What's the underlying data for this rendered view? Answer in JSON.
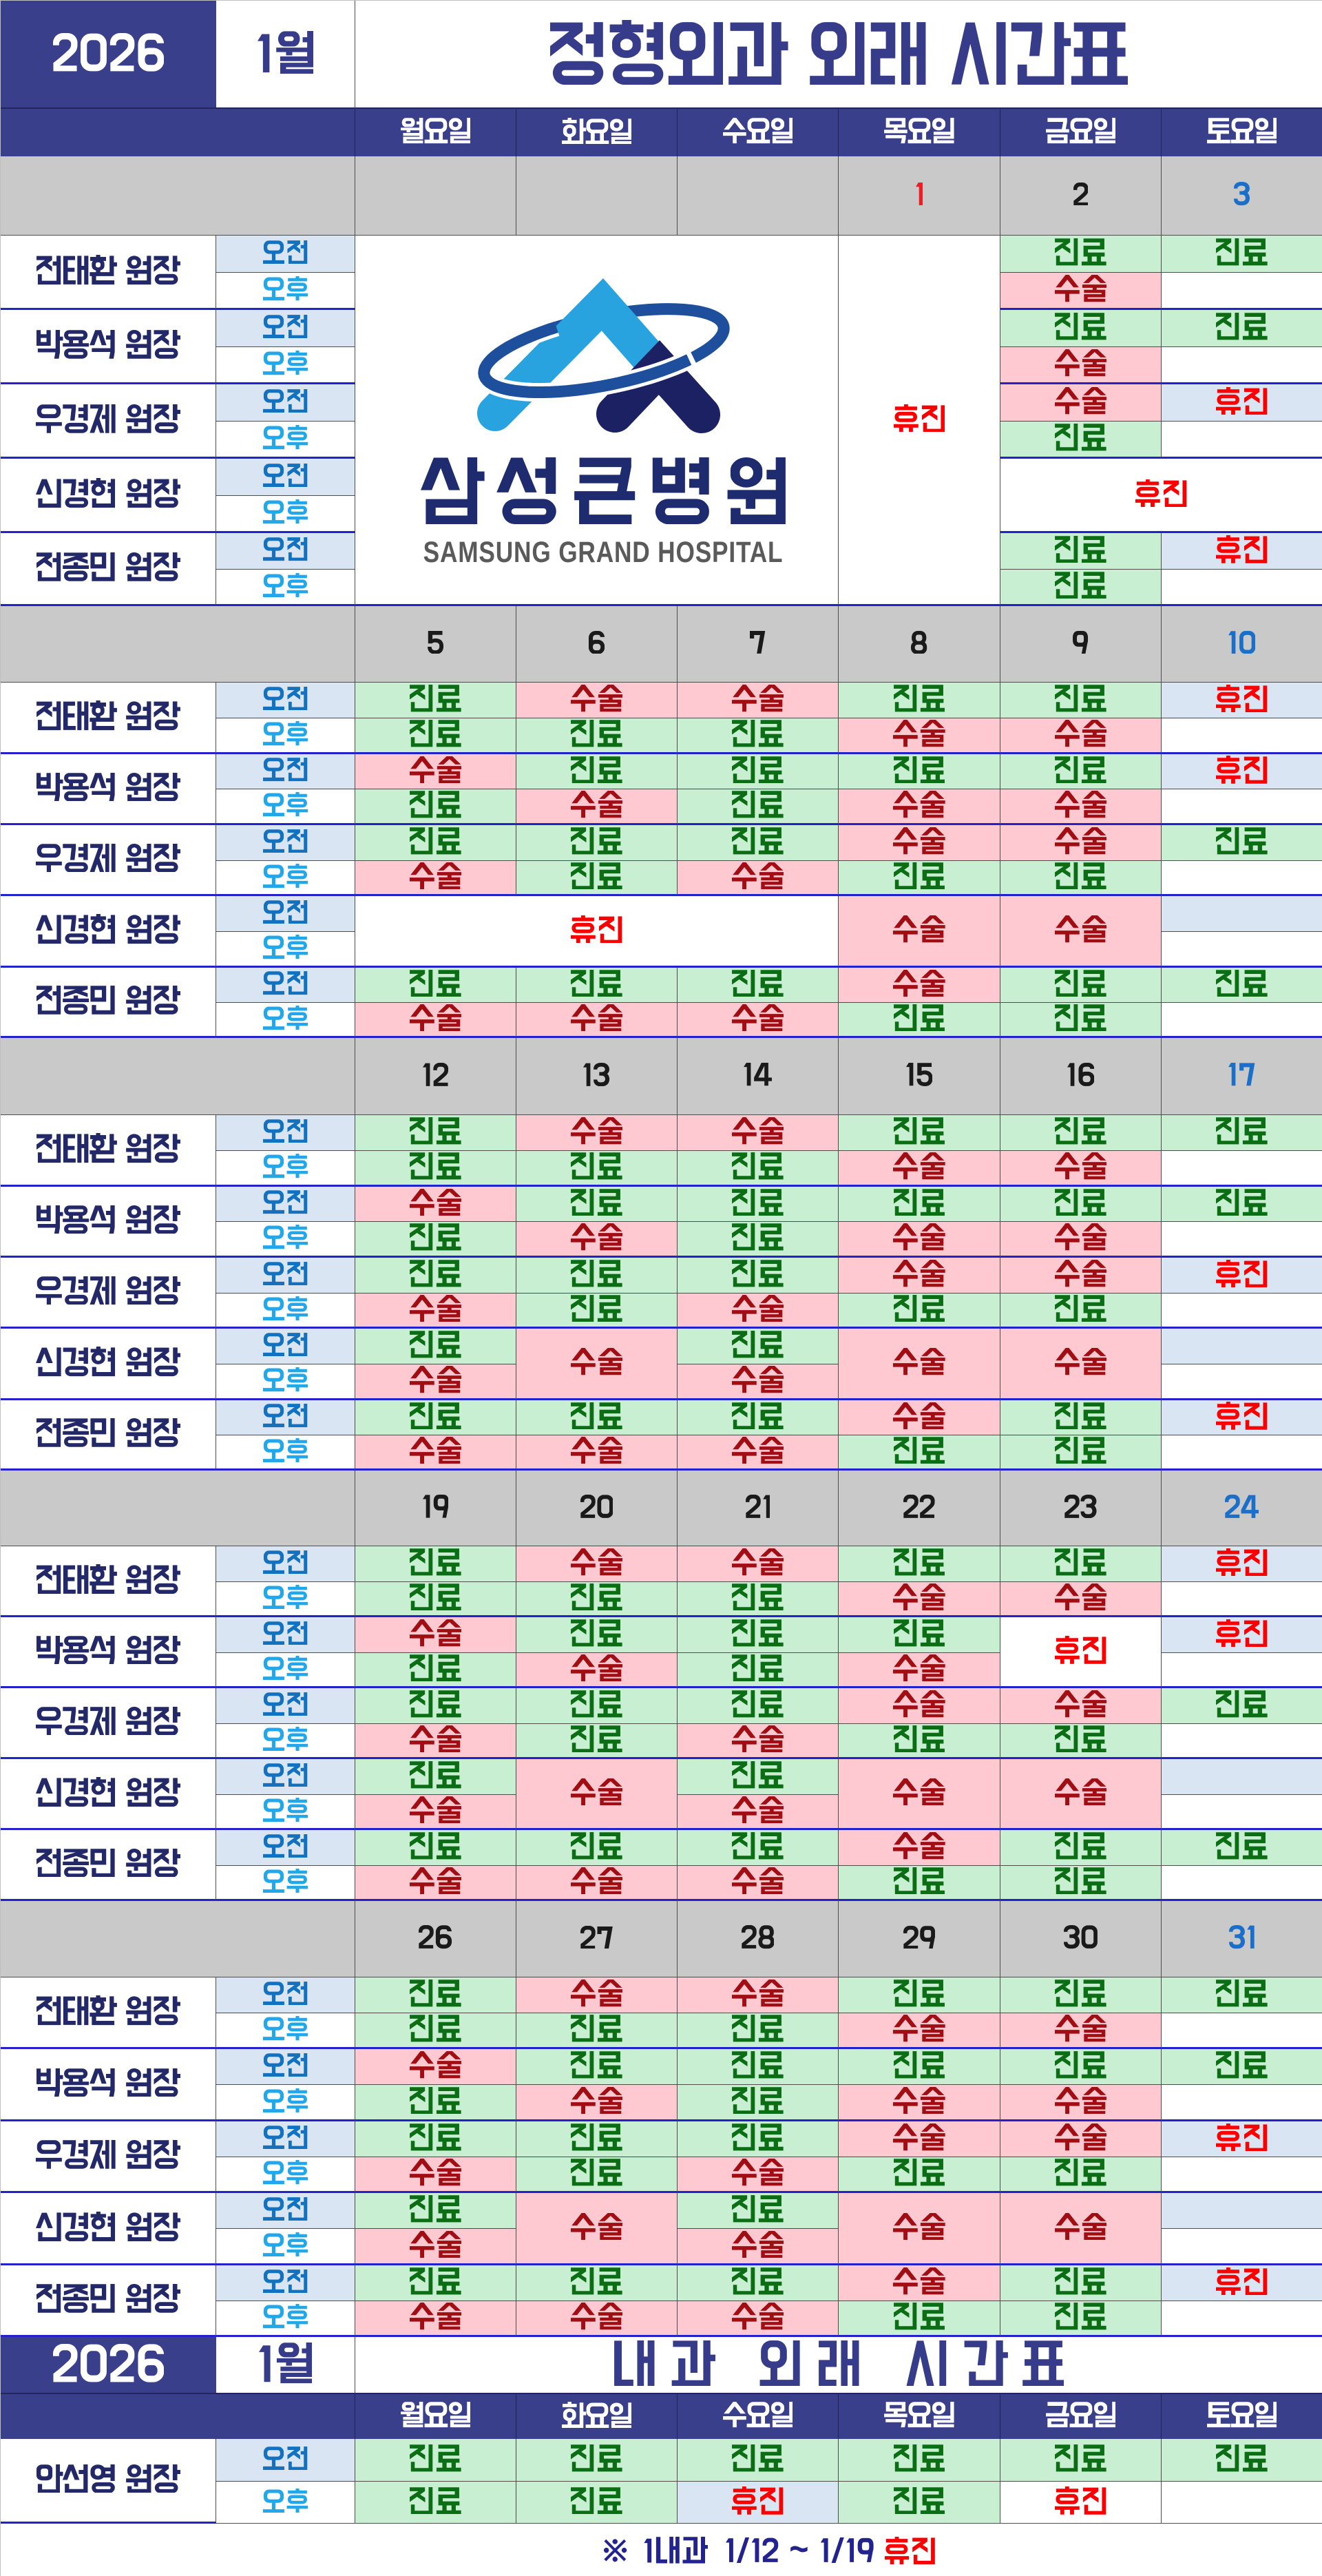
{
  "document": {
    "year": "2026",
    "month": "1월"
  },
  "labels": {
    "am": "오전",
    "pm": "오후",
    "consult": "진료",
    "surgery": "수술",
    "closed": "휴진"
  },
  "logo": {
    "korean": "삼성큰병원",
    "english": "SAMSUNG GRAND HOSPITAL"
  },
  "sections": [
    {
      "year": "2026",
      "month": "1월",
      "title": "정형외과 외래 시간표",
      "day_headers": [
        "월요일",
        "화요일",
        "수요일",
        "목요일",
        "금요일",
        "토요일"
      ],
      "doctors": [
        "전태환 원장",
        "박용석 원장",
        "우경제 원장",
        "신경현 원장",
        "전종민 원장"
      ],
      "weeks": [
        {
          "dates": [
            "",
            "",
            "",
            "1",
            "2",
            "3"
          ],
          "date_colors": [
            "k",
            "k",
            "k",
            "r",
            "k",
            "b"
          ],
          "doctors": [
            {
              "name": "전태환 원장",
              "am": [
                "",
                "",
                "",
                "",
                "진료",
                "진료"
              ],
              "pm": [
                "",
                "",
                "",
                "",
                "수술",
                ""
              ]
            },
            {
              "name": "박용석 원장",
              "am": [
                "",
                "",
                "",
                "",
                "진료",
                "진료"
              ],
              "pm": [
                "",
                "",
                "",
                "",
                "수술",
                ""
              ]
            },
            {
              "name": "우경제 원장",
              "am": [
                "",
                "",
                "",
                "",
                "수술",
                "휴진"
              ],
              "pm": [
                "",
                "",
                "",
                "",
                "진료",
                ""
              ]
            },
            {
              "name": "신경현 원장",
              "am": [
                "",
                "",
                "",
                "",
                "휴진",
                ""
              ],
              "pm": [
                "",
                "",
                "",
                "",
                "",
                ""
              ]
            },
            {
              "name": "전종민 원장",
              "am": [
                "",
                "",
                "",
                "",
                "진료",
                "휴진"
              ],
              "pm": [
                "",
                "",
                "",
                "",
                "진료",
                ""
              ]
            }
          ]
        },
        {
          "dates": [
            "5",
            "6",
            "7",
            "8",
            "9",
            "10"
          ],
          "date_colors": [
            "k",
            "k",
            "k",
            "k",
            "k",
            "b"
          ],
          "doctors": [
            {
              "name": "전태환 원장",
              "am": [
                "진료",
                "수술",
                "수술",
                "진료",
                "진료",
                "휴진"
              ],
              "pm": [
                "진료",
                "진료",
                "진료",
                "수술",
                "수술",
                ""
              ]
            },
            {
              "name": "박용석 원장",
              "am": [
                "수술",
                "진료",
                "진료",
                "진료",
                "진료",
                "휴진"
              ],
              "pm": [
                "진료",
                "수술",
                "진료",
                "수술",
                "수술",
                ""
              ]
            },
            {
              "name": "우경제 원장",
              "am": [
                "진료",
                "진료",
                "진료",
                "수술",
                "수술",
                "진료"
              ],
              "pm": [
                "수술",
                "진료",
                "수술",
                "진료",
                "진료",
                ""
              ]
            },
            {
              "name": "신경현 원장",
              "am": [
                "휴진",
                "",
                "",
                "수술",
                "수술",
                ""
              ],
              "pm": [
                "",
                "",
                "",
                "",
                "",
                ""
              ]
            },
            {
              "name": "전종민 원장",
              "am": [
                "진료",
                "진료",
                "진료",
                "수술",
                "진료",
                "진료"
              ],
              "pm": [
                "수술",
                "수술",
                "수술",
                "진료",
                "진료",
                ""
              ]
            }
          ]
        },
        {
          "dates": [
            "12",
            "13",
            "14",
            "15",
            "16",
            "17"
          ],
          "date_colors": [
            "k",
            "k",
            "k",
            "k",
            "k",
            "b"
          ],
          "doctors": [
            {
              "name": "전태환 원장",
              "am": [
                "진료",
                "수술",
                "수술",
                "진료",
                "진료",
                "진료"
              ],
              "pm": [
                "진료",
                "진료",
                "진료",
                "수술",
                "수술",
                ""
              ]
            },
            {
              "name": "박용석 원장",
              "am": [
                "수술",
                "진료",
                "진료",
                "진료",
                "진료",
                "진료"
              ],
              "pm": [
                "진료",
                "수술",
                "진료",
                "수술",
                "수술",
                ""
              ]
            },
            {
              "name": "우경제 원장",
              "am": [
                "진료",
                "진료",
                "진료",
                "수술",
                "수술",
                "휴진"
              ],
              "pm": [
                "수술",
                "진료",
                "수술",
                "진료",
                "진료",
                ""
              ]
            },
            {
              "name": "신경현 원장",
              "am": [
                "진료",
                "수술",
                "진료",
                "수술",
                "수술",
                ""
              ],
              "pm": [
                "수술",
                "",
                "수술",
                "",
                "",
                ""
              ]
            },
            {
              "name": "전종민 원장",
              "am": [
                "진료",
                "진료",
                "진료",
                "수술",
                "진료",
                "휴진"
              ],
              "pm": [
                "수술",
                "수술",
                "수술",
                "진료",
                "진료",
                ""
              ]
            }
          ]
        },
        {
          "dates": [
            "19",
            "20",
            "21",
            "22",
            "23",
            "24"
          ],
          "date_colors": [
            "k",
            "k",
            "k",
            "k",
            "k",
            "b"
          ],
          "doctors": [
            {
              "name": "전태환 원장",
              "am": [
                "진료",
                "수술",
                "수술",
                "진료",
                "진료",
                "휴진"
              ],
              "pm": [
                "진료",
                "진료",
                "진료",
                "수술",
                "수술",
                ""
              ]
            },
            {
              "name": "박용석 원장",
              "am": [
                "수술",
                "진료",
                "진료",
                "진료",
                "휴진",
                "휴진"
              ],
              "pm": [
                "진료",
                "수술",
                "진료",
                "수술",
                "",
                ""
              ]
            },
            {
              "name": "우경제 원장",
              "am": [
                "진료",
                "진료",
                "진료",
                "수술",
                "수술",
                "진료"
              ],
              "pm": [
                "수술",
                "진료",
                "수술",
                "진료",
                "진료",
                ""
              ]
            },
            {
              "name": "신경현 원장",
              "am": [
                "진료",
                "수술",
                "진료",
                "수술",
                "수술",
                ""
              ],
              "pm": [
                "수술",
                "",
                "수술",
                "",
                "",
                ""
              ]
            },
            {
              "name": "전종민 원장",
              "am": [
                "진료",
                "진료",
                "진료",
                "수술",
                "진료",
                "진료"
              ],
              "pm": [
                "수술",
                "수술",
                "수술",
                "진료",
                "진료",
                ""
              ]
            }
          ]
        },
        {
          "dates": [
            "26",
            "27",
            "28",
            "29",
            "30",
            "31"
          ],
          "date_colors": [
            "k",
            "k",
            "k",
            "k",
            "k",
            "b"
          ],
          "doctors": [
            {
              "name": "전태환 원장",
              "am": [
                "진료",
                "수술",
                "수술",
                "진료",
                "진료",
                "진료"
              ],
              "pm": [
                "진료",
                "진료",
                "진료",
                "수술",
                "수술",
                ""
              ]
            },
            {
              "name": "박용석 원장",
              "am": [
                "수술",
                "진료",
                "진료",
                "진료",
                "진료",
                "진료"
              ],
              "pm": [
                "진료",
                "수술",
                "진료",
                "수술",
                "수술",
                ""
              ]
            },
            {
              "name": "우경제 원장",
              "am": [
                "진료",
                "진료",
                "진료",
                "수술",
                "수술",
                "휴진"
              ],
              "pm": [
                "수술",
                "진료",
                "수술",
                "진료",
                "진료",
                ""
              ]
            },
            {
              "name": "신경현 원장",
              "am": [
                "진료",
                "수술",
                "진료",
                "수술",
                "수술",
                ""
              ],
              "pm": [
                "수술",
                "",
                "수술",
                "",
                "",
                ""
              ]
            },
            {
              "name": "전종민 원장",
              "am": [
                "진료",
                "진료",
                "진료",
                "수술",
                "진료",
                "휴진"
              ],
              "pm": [
                "수술",
                "수술",
                "수술",
                "진료",
                "진료",
                ""
              ]
            }
          ]
        }
      ]
    },
    {
      "year": "2026",
      "month": "1월",
      "title": "내과 외래 시간표",
      "day_headers": [
        "월요일",
        "화요일",
        "수요일",
        "목요일",
        "금요일",
        "토요일"
      ],
      "doctors": [
        "안선영 원장"
      ],
      "weeks": [
        {
          "dates": [
            "",
            "",
            "",
            "",
            "",
            ""
          ],
          "date_colors": [
            "k",
            "k",
            "k",
            "k",
            "k",
            "k"
          ],
          "doctors": [
            {
              "name": "안선영 원장",
              "am": [
                "진료",
                "진료",
                "진료",
                "진료",
                "진료",
                "진료"
              ],
              "pm": [
                "진료",
                "진료",
                "휴진",
                "진료",
                "휴진",
                ""
              ]
            }
          ]
        }
      ]
    }
  ],
  "footnote": {
    "clinic": "※ 1내과",
    "period": "1/12 ~ 1/19",
    "status": "휴진"
  },
  "colors": {
    "header_navy": "#3A3F8C",
    "block_line": "#2222CC",
    "grid_line": "#4D4D4D",
    "week_row_gray": "#C9C9C9",
    "consult_bg": "#C9EFD2",
    "consult_text": "#0B6E14",
    "surgery_bg": "#FFC9D2",
    "surgery_text": "#A00D12",
    "closed_text": "#FA0000",
    "lightblue_bg": "#D9E5F3",
    "am_text": "#1272BF",
    "pm_text": "#22A7EA",
    "doctor_text": "#232968",
    "title_text": "#363C8A",
    "date_black": "#1A1A1A",
    "date_red": "#EE1C25",
    "date_blue": "#1C6FC9",
    "logo_korean": "#1E2B6E",
    "logo_english": "#5A5A5A",
    "logo_cyan": "#29A3DF",
    "logo_navy": "#1B2163",
    "logo_ring": "#1D4F9C",
    "footnote_navy": "#23238F"
  }
}
